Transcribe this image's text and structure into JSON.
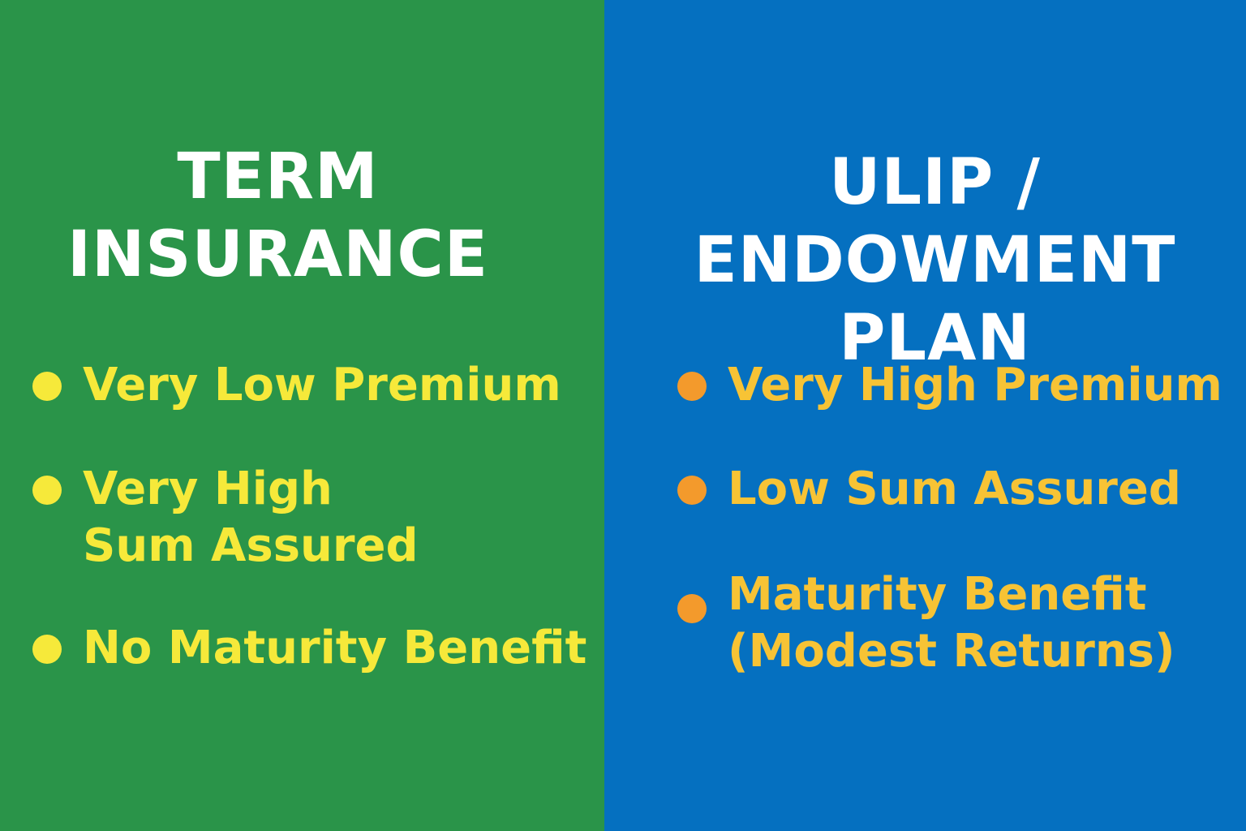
{
  "left_panel": {
    "background": "#2a9449",
    "title_lines": [
      "TERM",
      "INSURANCE"
    ],
    "text_color": "#f6e93a",
    "bullet_color": "#f6e93a",
    "bullets": [
      {
        "lines": [
          "Very Low Premium"
        ]
      },
      {
        "lines": [
          "Very High",
          "Sum Assured"
        ]
      },
      {
        "lines": [
          "No Maturity Benefit"
        ]
      }
    ]
  },
  "right_panel": {
    "background": "#0570c0",
    "title_lines": [
      "ULIP /",
      "ENDOWMENT",
      "PLAN"
    ],
    "text_color": "#f7c335",
    "bullet_color": "#f39a2c",
    "bullets": [
      {
        "lines": [
          "Very High Premium"
        ]
      },
      {
        "lines": [
          "Low Sum Assured"
        ]
      },
      {
        "lines": [
          "Maturity Benefit",
          "(Modest Returns)"
        ]
      }
    ]
  }
}
